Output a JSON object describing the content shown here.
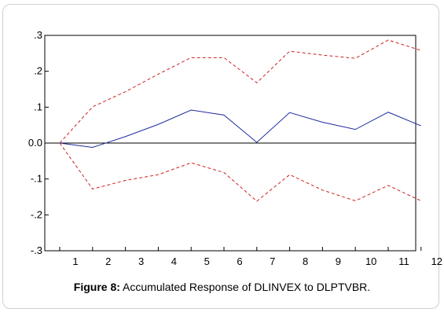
{
  "chart_data": {
    "type": "line",
    "x": [
      1,
      2,
      3,
      4,
      5,
      6,
      7,
      8,
      9,
      10,
      11,
      12
    ],
    "xticks": [
      "1",
      "2",
      "3",
      "4",
      "5",
      "6",
      "7",
      "8",
      "9",
      "10",
      "11",
      "12"
    ],
    "ylim": [
      -0.3,
      0.3
    ],
    "yticks": [
      {
        "value": 0.3,
        "label": ".3"
      },
      {
        "value": 0.2,
        "label": ".2"
      },
      {
        "value": 0.1,
        "label": ".1"
      },
      {
        "value": 0.0,
        "label": "0.0"
      },
      {
        "value": -0.1,
        "label": "-.1"
      },
      {
        "value": -0.2,
        "label": "-.2"
      },
      {
        "value": -0.3,
        "label": "-.3"
      }
    ],
    "series": [
      {
        "style": "solid",
        "color": "#1f2aa0",
        "values": [
          0.0,
          -0.012,
          0.018,
          0.052,
          0.092,
          0.078,
          0.002,
          0.085,
          0.058,
          0.038,
          0.086,
          0.048
        ]
      },
      {
        "style": "dashed",
        "color": "#cc2222",
        "values": [
          0.0,
          0.101,
          0.143,
          0.192,
          0.238,
          0.238,
          0.168,
          0.256,
          0.245,
          0.236,
          0.287,
          0.258
        ]
      },
      {
        "style": "dashed",
        "color": "#cc2222",
        "values": [
          0.0,
          -0.128,
          -0.104,
          -0.088,
          -0.055,
          -0.082,
          -0.162,
          -0.088,
          -0.131,
          -0.161,
          -0.118,
          -0.161
        ]
      }
    ],
    "zero_line": true,
    "grid": false
  },
  "caption": {
    "label": "Figure 8:",
    "text": " Accumulated Response of DLINVEX to DLPTVBR."
  }
}
